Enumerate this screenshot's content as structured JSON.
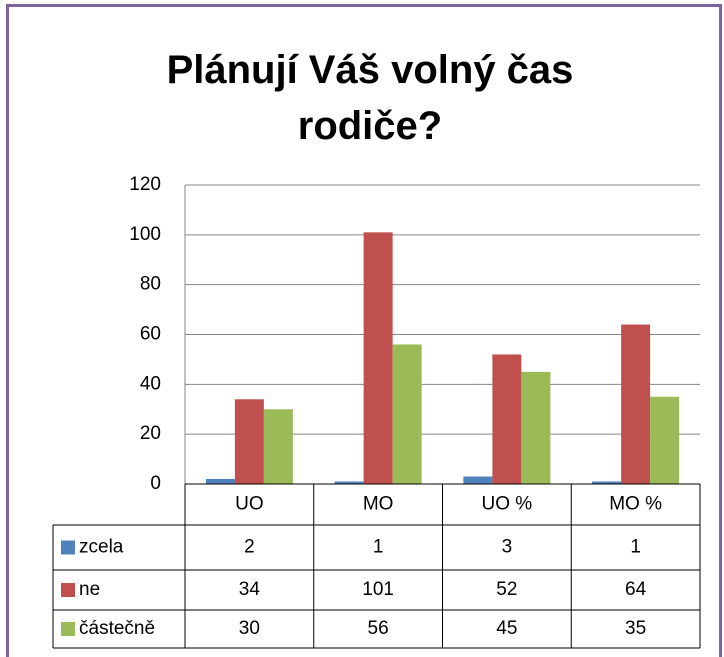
{
  "chart_data": {
    "type": "bar",
    "title": "Plánují Váš volný čas rodiče?",
    "categories": [
      "UO",
      "MO",
      "UO %",
      "MO %"
    ],
    "series": [
      {
        "name": "zcela",
        "color": "#4f81bd",
        "values": [
          2,
          1,
          3,
          1
        ]
      },
      {
        "name": "ne",
        "color": "#c0504d",
        "values": [
          34,
          101,
          52,
          64
        ]
      },
      {
        "name": "částečně",
        "color": "#9bbb59",
        "values": [
          30,
          56,
          45,
          35
        ]
      }
    ],
    "ylim": [
      0,
      120
    ],
    "yticks": [
      0,
      20,
      40,
      60,
      80,
      100,
      120
    ],
    "grid": true,
    "data_table": true
  }
}
